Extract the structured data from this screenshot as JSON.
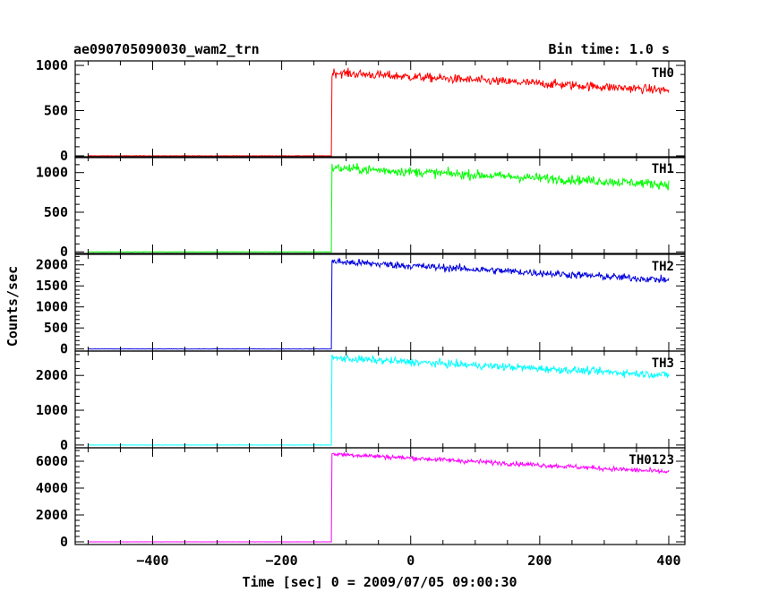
{
  "chart_data": {
    "type": "line",
    "title": "ae090705090030_wam2_trn",
    "bin_time": "Bin time: 1.0 s",
    "xlabel": "Time [sec] 0 = 2009/07/05 09:00:30",
    "ylabel": "Counts/sec",
    "xlim": [
      -520,
      425
    ],
    "x_ticks": [
      -400,
      -200,
      0,
      200,
      400
    ],
    "x_tick_labels": [
      "−400",
      "−200",
      "0",
      "200",
      "400"
    ],
    "step_time": -122,
    "x_start": -500,
    "x_end": 400,
    "panels": [
      {
        "name": "TH0",
        "color": "#ff0000",
        "ylim": [
          -20,
          1050
        ],
        "ticks": [
          0,
          500,
          1000
        ],
        "tick_labels": [
          "0",
          "500",
          "1000"
        ],
        "pre_level": 0,
        "peak": 920,
        "end": 725,
        "noise": 25
      },
      {
        "name": "TH1",
        "color": "#00ff00",
        "ylim": [
          -20,
          1200
        ],
        "ticks": [
          0,
          500,
          1000
        ],
        "tick_labels": [
          "0",
          "500",
          "1000"
        ],
        "pre_level": 0,
        "peak": 1060,
        "end": 850,
        "noise": 30
      },
      {
        "name": "TH2",
        "color": "#0000dd",
        "ylim": [
          -50,
          2250
        ],
        "ticks": [
          0,
          500,
          1000,
          1500,
          2000
        ],
        "tick_labels": [
          "0",
          "500",
          "1000",
          "1500",
          "2000"
        ],
        "pre_level": 0,
        "peak": 2080,
        "end": 1640,
        "noise": 45
      },
      {
        "name": "TH3",
        "color": "#00ffff",
        "ylim": [
          -80,
          2700
        ],
        "ticks": [
          0,
          1000,
          2000
        ],
        "tick_labels": [
          "0",
          "1000",
          "2000"
        ],
        "pre_level": 0,
        "peak": 2500,
        "end": 2010,
        "noise": 55
      },
      {
        "name": "TH0123",
        "color": "#ff00ff",
        "ylim": [
          -200,
          7000
        ],
        "ticks": [
          0,
          2000,
          4000,
          6000
        ],
        "tick_labels": [
          "0",
          "2000",
          "4000",
          "6000"
        ],
        "pre_level": 0,
        "peak": 6550,
        "end": 5200,
        "noise": 90
      }
    ]
  }
}
